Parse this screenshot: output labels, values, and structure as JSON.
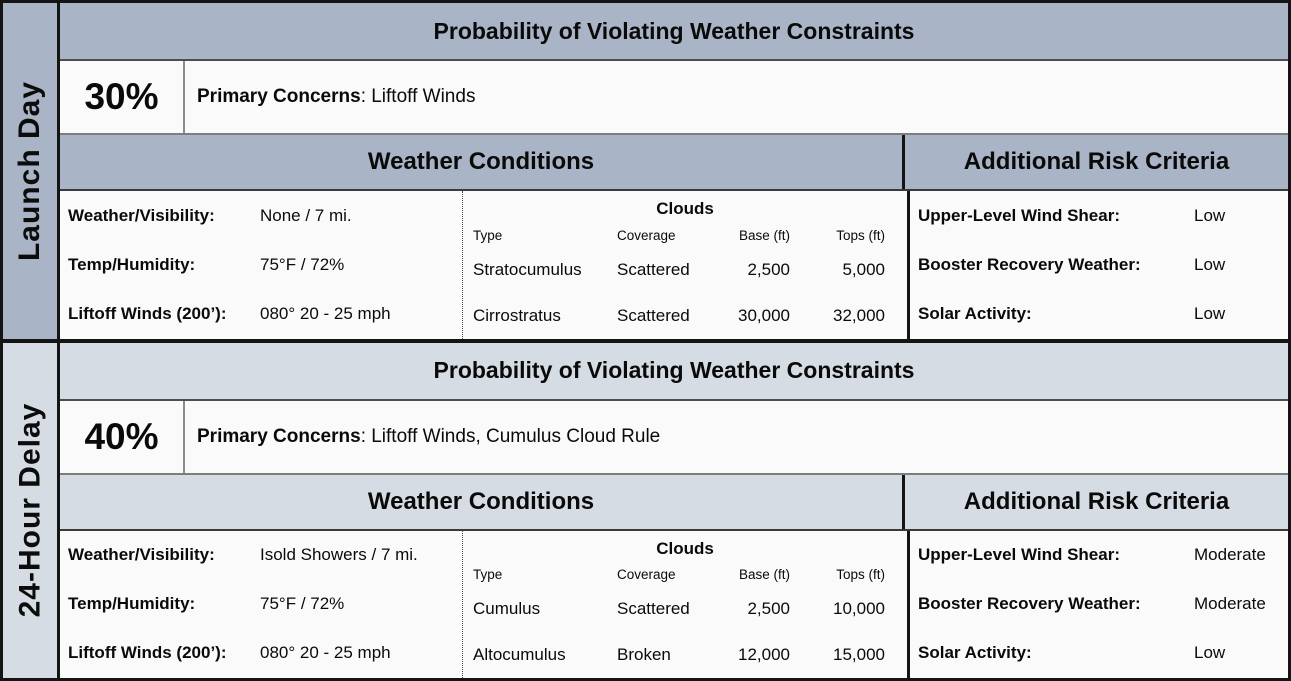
{
  "colors": {
    "section1_accent": "#a9b4c6",
    "section2_accent": "#d6dce3",
    "cell_background": "#fafafa",
    "border_dark": "#141414"
  },
  "clouds": {
    "title": "Clouds",
    "columns": [
      "Type",
      "Coverage",
      "Base (ft)",
      "Tops (ft)"
    ]
  },
  "sections": [
    {
      "side_label": "Launch Day",
      "probability_header": "Probability of Violating Weather Constraints",
      "probability": "30%",
      "primary_concerns_label": "Primary Concerns",
      "primary_concerns_rest": ": Liftoff Winds",
      "weather_conditions_title": "Weather Conditions",
      "additional_risk_title": "Additional Risk Criteria",
      "weather_rows": [
        {
          "label": "Weather/Visibility:",
          "value": "None / 7 mi."
        },
        {
          "label": "Temp/Humidity:",
          "value": "75°F / 72%"
        },
        {
          "label": "Liftoff Winds (200’):",
          "value": "080° 20 - 25 mph"
        }
      ],
      "cloud_rows": [
        {
          "type": "Stratocumulus",
          "coverage": "Scattered",
          "base": "2,500",
          "tops": "5,000"
        },
        {
          "type": "Cirrostratus",
          "coverage": "Scattered",
          "base": "30,000",
          "tops": "32,000"
        }
      ],
      "risk_rows": [
        {
          "label": "Upper-Level Wind Shear:",
          "value": "Low"
        },
        {
          "label": "Booster Recovery Weather:",
          "value": "Low"
        },
        {
          "label": "Solar Activity:",
          "value": "Low"
        }
      ]
    },
    {
      "side_label": "24-Hour Delay",
      "probability_header": "Probability of Violating Weather Constraints",
      "probability": "40%",
      "primary_concerns_label": "Primary Concerns",
      "primary_concerns_rest": ": Liftoff Winds, Cumulus Cloud Rule",
      "weather_conditions_title": "Weather Conditions",
      "additional_risk_title": "Additional Risk Criteria",
      "weather_rows": [
        {
          "label": "Weather/Visibility:",
          "value": "Isold Showers / 7 mi."
        },
        {
          "label": "Temp/Humidity:",
          "value": "75°F / 72%"
        },
        {
          "label": "Liftoff Winds (200’):",
          "value": "080° 20 - 25 mph"
        }
      ],
      "cloud_rows": [
        {
          "type": "Cumulus",
          "coverage": "Scattered",
          "base": "2,500",
          "tops": "10,000"
        },
        {
          "type": "Altocumulus",
          "coverage": "Broken",
          "base": "12,000",
          "tops": "15,000"
        }
      ],
      "risk_rows": [
        {
          "label": "Upper-Level Wind Shear:",
          "value": "Moderate"
        },
        {
          "label": "Booster Recovery Weather:",
          "value": "Moderate"
        },
        {
          "label": "Solar Activity:",
          "value": "Low"
        }
      ]
    }
  ]
}
